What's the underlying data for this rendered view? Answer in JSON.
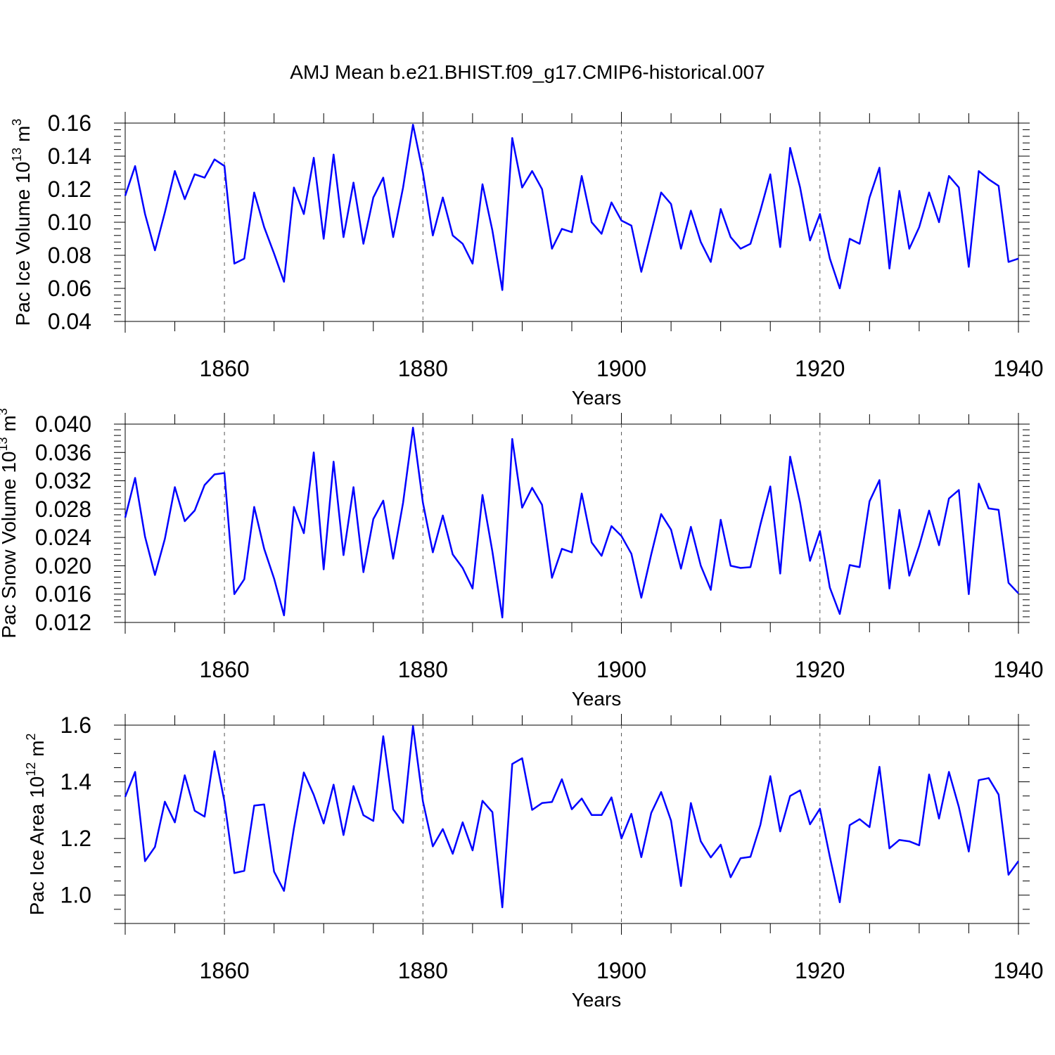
{
  "figure": {
    "title": "AMJ Mean b.e21.BHIST.f09_g17.CMIP6-historical.007"
  },
  "colors": {
    "line": "#0000ff",
    "frame": "#000000",
    "grid": "#555555"
  },
  "chart_data": [
    {
      "type": "line",
      "title": "AMJ Mean b.e21.BHIST.f09_g17.CMIP6-historical.007",
      "xlabel": "Years",
      "ylabel_parts": [
        "Pac Ice Volume 10",
        "13",
        " m",
        "3"
      ],
      "xlim": [
        1850,
        1940
      ],
      "ylim": [
        0.04,
        0.16
      ],
      "yticks": [
        0.04,
        0.06,
        0.08,
        0.1,
        0.12,
        0.14,
        0.16
      ],
      "ytick_labels": [
        "0.04",
        "0.06",
        "0.08",
        "0.10",
        "0.12",
        "0.14",
        "0.16"
      ],
      "xticks": [
        1860,
        1880,
        1900,
        1920,
        1940
      ],
      "xtick_labels": [
        "1860",
        "1880",
        "1900",
        "1920",
        "1940"
      ],
      "grid_x": [
        1860,
        1880,
        1900,
        1920
      ],
      "series": [
        {
          "name": "Pac Ice Volume",
          "x_start": 1850,
          "values": [
            0.116,
            0.134,
            0.105,
            0.083,
            0.106,
            0.131,
            0.114,
            0.129,
            0.127,
            0.138,
            0.134,
            0.075,
            0.078,
            0.118,
            0.097,
            0.081,
            0.064,
            0.121,
            0.105,
            0.139,
            0.09,
            0.141,
            0.091,
            0.124,
            0.087,
            0.115,
            0.127,
            0.091,
            0.121,
            0.159,
            0.13,
            0.092,
            0.115,
            0.092,
            0.087,
            0.075,
            0.123,
            0.095,
            0.059,
            0.151,
            0.121,
            0.131,
            0.12,
            0.084,
            0.096,
            0.094,
            0.128,
            0.1,
            0.093,
            0.112,
            0.101,
            0.098,
            0.07,
            0.094,
            0.118,
            0.111,
            0.084,
            0.107,
            0.088,
            0.076,
            0.108,
            0.091,
            0.084,
            0.087,
            0.107,
            0.129,
            0.085,
            0.145,
            0.121,
            0.089,
            0.105,
            0.078,
            0.06,
            0.09,
            0.087,
            0.115,
            0.133,
            0.072,
            0.119,
            0.084,
            0.097,
            0.118,
            0.1,
            0.128,
            0.121,
            0.073,
            0.131,
            0.126,
            0.122,
            0.076,
            0.078
          ]
        }
      ]
    },
    {
      "type": "line",
      "xlabel": "Years",
      "ylabel_parts": [
        "Pac Snow Volume 10",
        "13",
        " m",
        "3"
      ],
      "xlim": [
        1850,
        1940
      ],
      "ylim": [
        0.012,
        0.04
      ],
      "yticks": [
        0.012,
        0.016,
        0.02,
        0.024,
        0.028,
        0.032,
        0.036,
        0.04
      ],
      "ytick_labels": [
        "0.012",
        "0.016",
        "0.020",
        "0.024",
        "0.028",
        "0.032",
        "0.036",
        "0.040"
      ],
      "xticks": [
        1860,
        1880,
        1900,
        1920,
        1940
      ],
      "xtick_labels": [
        "1860",
        "1880",
        "1900",
        "1920",
        "1940"
      ],
      "grid_x": [
        1860,
        1880,
        1900,
        1920
      ],
      "series": [
        {
          "name": "Pac Snow Volume",
          "x_start": 1850,
          "values": [
            0.0268,
            0.0324,
            0.0241,
            0.0187,
            0.0238,
            0.0311,
            0.0263,
            0.0278,
            0.0314,
            0.0329,
            0.0331,
            0.016,
            0.0181,
            0.0283,
            0.0224,
            0.0182,
            0.013,
            0.0283,
            0.0246,
            0.036,
            0.0195,
            0.0347,
            0.0215,
            0.0311,
            0.0191,
            0.0266,
            0.0292,
            0.021,
            0.0289,
            0.0395,
            0.0289,
            0.0219,
            0.0271,
            0.0216,
            0.0197,
            0.0168,
            0.03,
            0.022,
            0.0127,
            0.0379,
            0.0282,
            0.031,
            0.0286,
            0.0183,
            0.0224,
            0.0219,
            0.0302,
            0.0233,
            0.0214,
            0.0256,
            0.0242,
            0.0217,
            0.0155,
            0.0216,
            0.0273,
            0.0251,
            0.0196,
            0.0255,
            0.02,
            0.0166,
            0.0265,
            0.02,
            0.0197,
            0.0198,
            0.0258,
            0.0312,
            0.0189,
            0.0354,
            0.0289,
            0.0207,
            0.0249,
            0.0169,
            0.0132,
            0.0201,
            0.0198,
            0.0291,
            0.0321,
            0.0168,
            0.0279,
            0.0186,
            0.0228,
            0.0278,
            0.0229,
            0.0295,
            0.0307,
            0.016,
            0.0316,
            0.0281,
            0.0279,
            0.0176,
            0.0161
          ]
        }
      ]
    },
    {
      "type": "line",
      "xlabel": "Years",
      "ylabel_parts": [
        "Pac Ice Area 10",
        "12",
        " m",
        "2"
      ],
      "xlim": [
        1850,
        1940
      ],
      "ylim": [
        0.9,
        1.6
      ],
      "yticks": [
        1.0,
        1.2,
        1.4,
        1.6
      ],
      "ytick_labels": [
        "1.0",
        "1.2",
        "1.4",
        "1.6"
      ],
      "yminor": [
        0.9,
        0.95,
        1.05,
        1.1,
        1.15,
        1.25,
        1.3,
        1.35,
        1.45,
        1.5,
        1.55
      ],
      "xticks": [
        1860,
        1880,
        1900,
        1920,
        1940
      ],
      "xtick_labels": [
        "1860",
        "1880",
        "1900",
        "1920",
        "1940"
      ],
      "grid_x": [
        1860,
        1880,
        1900,
        1920
      ],
      "series": [
        {
          "name": "Pac Ice Area",
          "x_start": 1850,
          "values": [
            1.347,
            1.435,
            1.12,
            1.17,
            1.33,
            1.257,
            1.423,
            1.298,
            1.277,
            1.508,
            1.331,
            1.078,
            1.086,
            1.316,
            1.32,
            1.083,
            1.015,
            1.236,
            1.433,
            1.354,
            1.253,
            1.39,
            1.212,
            1.385,
            1.282,
            1.262,
            1.561,
            1.303,
            1.255,
            1.597,
            1.331,
            1.172,
            1.233,
            1.146,
            1.257,
            1.158,
            1.333,
            1.293,
            0.957,
            1.463,
            1.483,
            1.301,
            1.325,
            1.329,
            1.409,
            1.303,
            1.341,
            1.283,
            1.283,
            1.345,
            1.2,
            1.287,
            1.134,
            1.29,
            1.364,
            1.263,
            1.032,
            1.325,
            1.19,
            1.133,
            1.178,
            1.063,
            1.13,
            1.135,
            1.248,
            1.42,
            1.225,
            1.35,
            1.37,
            1.25,
            1.305,
            1.135,
            0.975,
            1.247,
            1.268,
            1.24,
            1.453,
            1.165,
            1.195,
            1.19,
            1.176,
            1.426,
            1.27,
            1.435,
            1.311,
            1.154,
            1.406,
            1.413,
            1.355,
            1.072,
            1.12
          ]
        }
      ]
    }
  ]
}
